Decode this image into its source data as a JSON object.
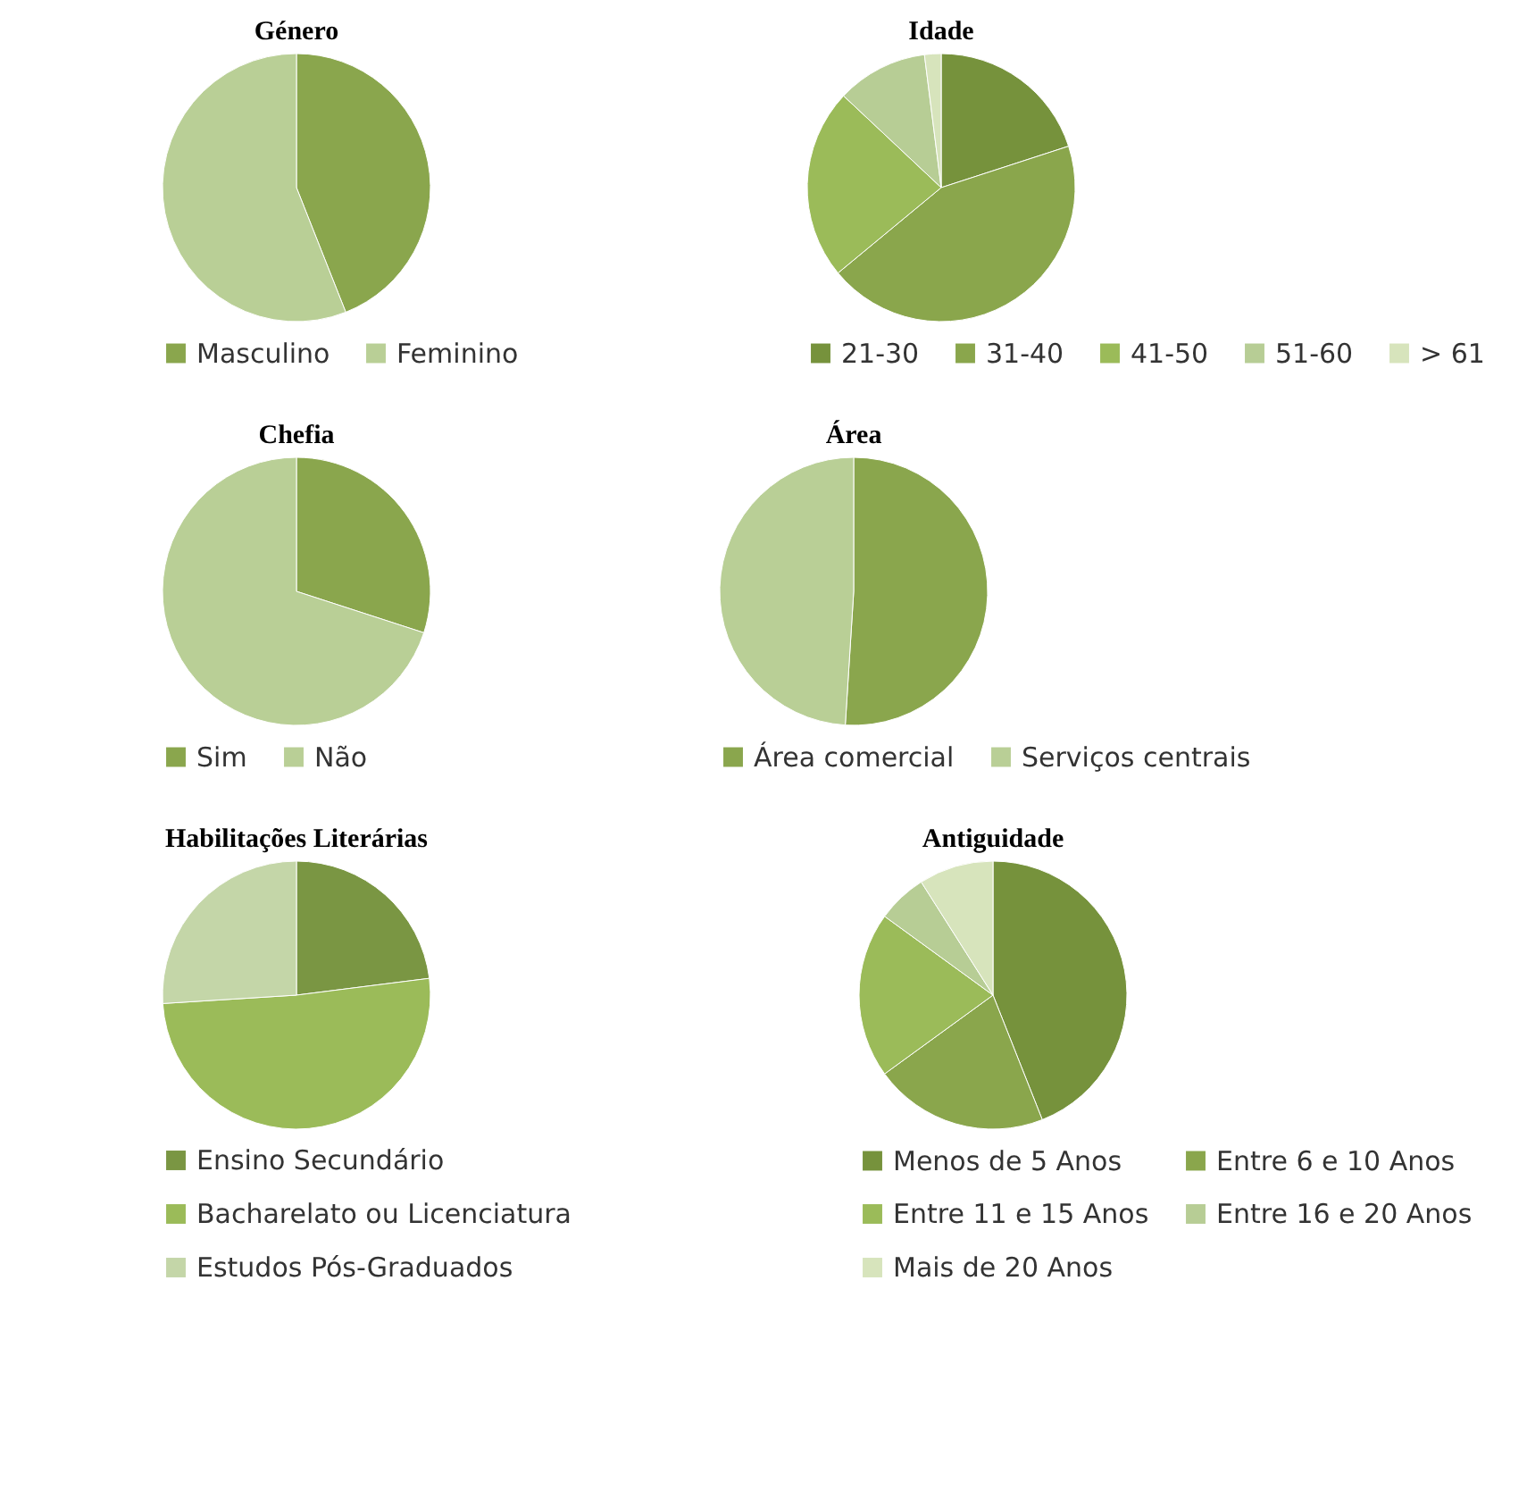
{
  "chart_data": [
    {
      "type": "pie",
      "title": "Género",
      "categories": [
        "Masculino",
        "Feminino"
      ],
      "values": [
        44,
        56
      ],
      "colors": [
        "#8aa64d",
        "#b9cf96"
      ],
      "legend": "bottom"
    },
    {
      "type": "pie",
      "title": "Idade",
      "categories": [
        "21-30",
        "31-40",
        "41-50",
        "51-60",
        "> 61"
      ],
      "values": [
        20,
        44,
        23,
        11,
        2
      ],
      "colors": [
        "#76923c",
        "#8aa64c",
        "#9bbb59",
        "#b7cd95",
        "#d7e4bc"
      ],
      "legend": "bottom"
    },
    {
      "type": "pie",
      "title": "Chefia",
      "categories": [
        "Sim",
        "Não"
      ],
      "values": [
        30,
        70
      ],
      "colors": [
        "#8aa64d",
        "#b9cf96"
      ],
      "legend": "bottom"
    },
    {
      "type": "pie",
      "title": "Área",
      "categories": [
        "Área comercial",
        "Serviços centrais"
      ],
      "values": [
        51,
        49
      ],
      "colors": [
        "#8aa64d",
        "#b9cf96"
      ],
      "legend": "bottom"
    },
    {
      "type": "pie",
      "title": "Habilitações Literárias",
      "categories": [
        "Ensino Secundário",
        "Bacharelato ou Licenciatura",
        "Estudos Pós-Graduados"
      ],
      "values": [
        23,
        51,
        26
      ],
      "colors": [
        "#7a9643",
        "#9bbb59",
        "#c4d6a8"
      ],
      "legend": "bottom"
    },
    {
      "type": "pie",
      "title": "Antiguidade",
      "categories": [
        "Menos de 5 Anos",
        "Entre 6 e 10 Anos",
        "Entre 11 e 15 Anos",
        "Entre 16 e 20 Anos",
        "Mais de 20 Anos"
      ],
      "values": [
        44,
        21,
        20,
        6,
        9
      ],
      "colors": [
        "#76923c",
        "#8aa64c",
        "#9bbb59",
        "#b7cd95",
        "#d7e4bc"
      ],
      "legend": "bottom"
    }
  ]
}
